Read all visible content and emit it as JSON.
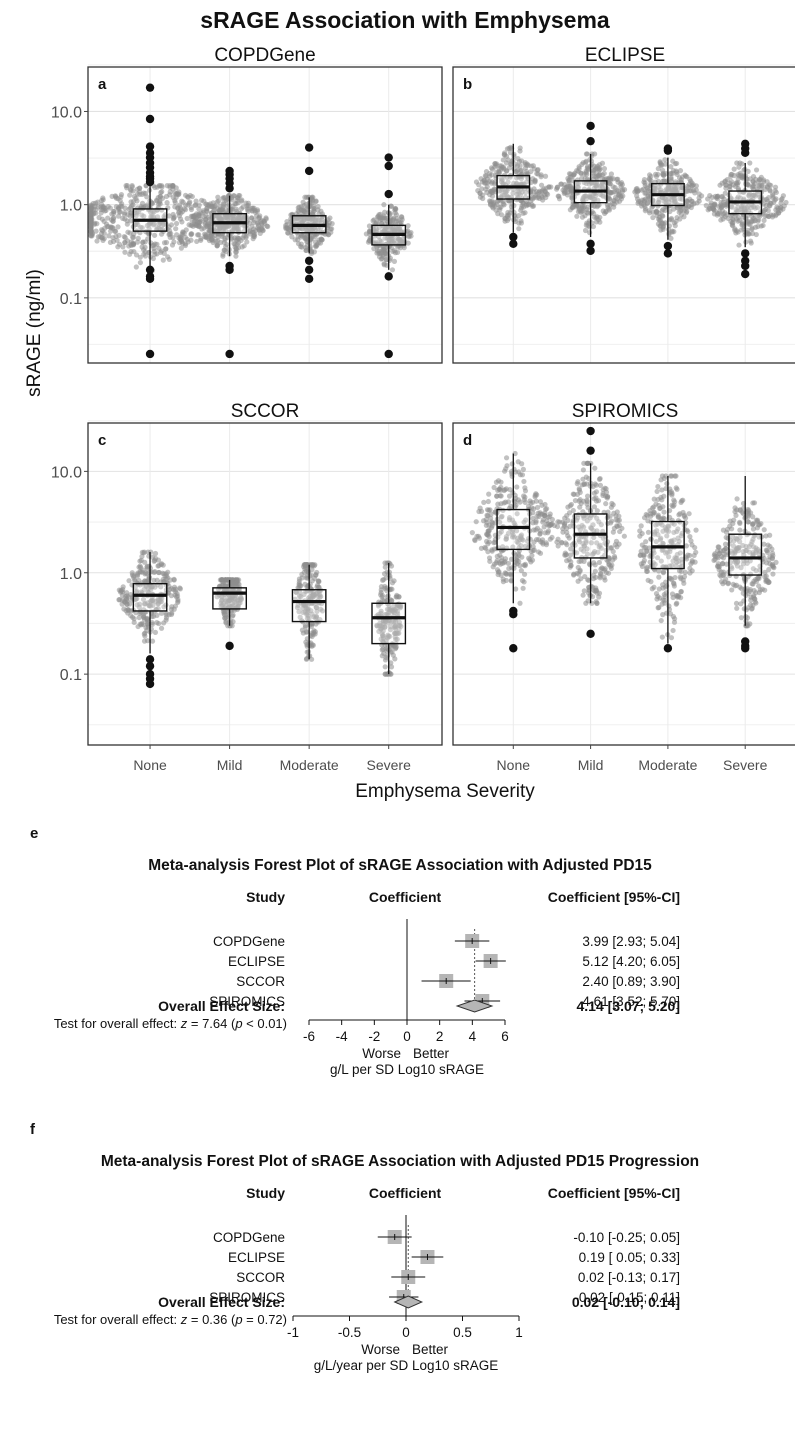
{
  "figure": {
    "title": "sRAGE Association with Emphysema",
    "ylabel": "sRAGE (ng/ml)",
    "xlabel": "Emphysema Severity"
  },
  "chart_data": [
    {
      "type": "boxplot",
      "scale": "log10",
      "ylim": [
        0.02,
        30
      ],
      "yticks": [
        0.1,
        1.0,
        10.0
      ],
      "ytick_labels": [
        "0.1",
        "1.0",
        "10.0"
      ],
      "categories": [
        "None",
        "Mild",
        "Moderate",
        "Severe"
      ],
      "panels": [
        {
          "letter": "a",
          "title": "COPDGene",
          "boxes": [
            {
              "q1": 0.52,
              "median": 0.68,
              "q3": 0.9,
              "wlo": 0.18,
              "whi": 1.6
            },
            {
              "q1": 0.5,
              "median": 0.64,
              "q3": 0.8,
              "wlo": 0.28,
              "whi": 1.25
            },
            {
              "q1": 0.5,
              "median": 0.6,
              "q3": 0.76,
              "wlo": 0.3,
              "whi": 1.2
            },
            {
              "q1": 0.37,
              "median": 0.48,
              "q3": 0.6,
              "wlo": 0.2,
              "whi": 1.0
            }
          ],
          "outliers": [
            [
              18,
              8.3,
              4.2,
              3.6,
              3.2,
              2.8,
              2.5,
              2.2,
              2.0,
              1.9,
              1.75,
              0.17,
              0.16,
              0.2,
              0.025
            ],
            [
              2.3,
              2.1,
              1.9,
              1.7,
              1.5,
              0.22,
              0.2,
              0.025
            ],
            [
              4.1,
              2.3,
              0.25,
              0.2,
              0.16
            ],
            [
              3.2,
              2.6,
              1.3,
              0.17,
              0.025
            ]
          ],
          "spreads": [
            1.4,
            0.55,
            0.35,
            0.32
          ]
        },
        {
          "letter": "b",
          "title": "ECLIPSE",
          "boxes": [
            {
              "q1": 1.15,
              "median": 1.55,
              "q3": 2.05,
              "wlo": 0.5,
              "whi": 4.5
            },
            {
              "q1": 1.05,
              "median": 1.4,
              "q3": 1.8,
              "wlo": 0.45,
              "whi": 3.5
            },
            {
              "q1": 0.98,
              "median": 1.28,
              "q3": 1.68,
              "wlo": 0.42,
              "whi": 3.2
            },
            {
              "q1": 0.8,
              "median": 1.07,
              "q3": 1.4,
              "wlo": 0.35,
              "whi": 2.8
            }
          ],
          "outliers": [
            [
              0.45,
              0.38
            ],
            [
              7.0,
              4.8,
              0.38,
              0.32
            ],
            [
              4.0,
              3.8,
              0.36,
              0.3
            ],
            [
              4.5,
              4.0,
              3.6,
              0.3,
              0.25,
              0.22,
              0.18
            ]
          ],
          "spreads": [
            0.55,
            0.5,
            0.5,
            0.6
          ]
        },
        {
          "letter": "c",
          "title": "SCCOR",
          "boxes": [
            {
              "q1": 0.42,
              "median": 0.6,
              "q3": 0.78,
              "wlo": 0.16,
              "whi": 1.6
            },
            {
              "q1": 0.44,
              "median": 0.63,
              "q3": 0.71,
              "wlo": 0.3,
              "whi": 0.85
            },
            {
              "q1": 0.33,
              "median": 0.52,
              "q3": 0.68,
              "wlo": 0.14,
              "whi": 1.2
            },
            {
              "q1": 0.2,
              "median": 0.36,
              "q3": 0.5,
              "wlo": 0.1,
              "whi": 1.25
            }
          ],
          "outliers": [
            [
              0.14,
              0.12,
              0.1,
              0.09,
              0.08
            ],
            [
              0.19
            ],
            [],
            []
          ],
          "spreads": [
            0.45,
            0.18,
            0.2,
            0.18
          ]
        },
        {
          "letter": "d",
          "title": "SPIROMICS",
          "boxes": [
            {
              "q1": 1.7,
              "median": 2.8,
              "q3": 4.2,
              "wlo": 0.5,
              "whi": 15
            },
            {
              "q1": 1.4,
              "median": 2.4,
              "q3": 3.8,
              "wlo": 0.5,
              "whi": 12
            },
            {
              "q1": 1.1,
              "median": 1.8,
              "q3": 3.2,
              "wlo": 0.2,
              "whi": 9
            },
            {
              "q1": 0.95,
              "median": 1.4,
              "q3": 2.4,
              "wlo": 0.3,
              "whi": 9
            }
          ],
          "outliers": [
            [
              0.42,
              0.39,
              0.18
            ],
            [
              25,
              16,
              0.25
            ],
            [
              0.18
            ],
            [
              0.21,
              0.19,
              0.18
            ]
          ],
          "spreads": [
            0.6,
            0.5,
            0.45,
            0.45
          ]
        }
      ]
    },
    {
      "type": "forest",
      "panel_letter": "e",
      "title": "Meta-analysis Forest Plot of sRAGE Association with Adjusted PD15",
      "headers": {
        "study": "Study",
        "coef": "Coefficient",
        "ci": "Coefficient [95%-CI]"
      },
      "studies": [
        {
          "name": "COPDGene",
          "est": 3.99,
          "lo": 2.93,
          "hi": 5.04,
          "label": "3.99 [2.93; 5.04]"
        },
        {
          "name": "ECLIPSE",
          "est": 5.12,
          "lo": 4.2,
          "hi": 6.05,
          "label": "5.12 [4.20; 6.05]"
        },
        {
          "name": "SCCOR",
          "est": 2.4,
          "lo": 0.89,
          "hi": 3.9,
          "label": "2.40 [0.89; 3.90]"
        },
        {
          "name": "SPIROMICS",
          "est": 4.61,
          "lo": 3.52,
          "hi": 5.7,
          "label": "4.61 [3.52; 5.70]"
        }
      ],
      "overall": {
        "name": "Overall Effect Size:",
        "est": 4.14,
        "lo": 3.07,
        "hi": 5.2,
        "label": "4.14 [3.07; 5.20]"
      },
      "test": {
        "prefix": "Test for overall effect: ",
        "z": "z",
        "mid": " = 7.64 (",
        "p": "p",
        "suffix": " < 0.01)"
      },
      "xlim": [
        -6,
        6
      ],
      "xticks": [
        "-6",
        "-4",
        "-2",
        "0",
        "2",
        "4",
        "6"
      ],
      "worse": "Worse",
      "better": "Better",
      "xlabel": "g/L per SD Log10 sRAGE"
    },
    {
      "type": "forest",
      "panel_letter": "f",
      "title": "Meta-analysis Forest Plot of sRAGE Association with Adjusted PD15 Progression",
      "headers": {
        "study": "Study",
        "coef": "Coefficient",
        "ci": "Coefficient [95%-CI]"
      },
      "studies": [
        {
          "name": "COPDGene",
          "est": -0.1,
          "lo": -0.25,
          "hi": 0.05,
          "label": "-0.10 [-0.25; 0.05]"
        },
        {
          "name": "ECLIPSE",
          "est": 0.19,
          "lo": 0.05,
          "hi": 0.33,
          "label": "0.19 [ 0.05; 0.33]"
        },
        {
          "name": "SCCOR",
          "est": 0.02,
          "lo": -0.13,
          "hi": 0.17,
          "label": "0.02 [-0.13; 0.17]"
        },
        {
          "name": "SPIROMICS",
          "est": -0.02,
          "lo": -0.15,
          "hi": 0.11,
          "label": "-0.02 [-0.15; 0.11]"
        }
      ],
      "overall": {
        "name": "Overall Effect Size:",
        "est": 0.02,
        "lo": -0.1,
        "hi": 0.14,
        "label": "0.02 [-0.10; 0.14]"
      },
      "test": {
        "prefix": "Test for overall effect: ",
        "z": "z",
        "mid": " = 0.36 (",
        "p": "p",
        "suffix": " = 0.72)"
      },
      "xlim": [
        -1,
        1
      ],
      "xticks": [
        "-1",
        "-0.5",
        "0",
        "0.5",
        "1"
      ],
      "worse": "Worse",
      "better": "Better",
      "xlabel": "g/L/year per SD Log10 sRAGE"
    }
  ]
}
